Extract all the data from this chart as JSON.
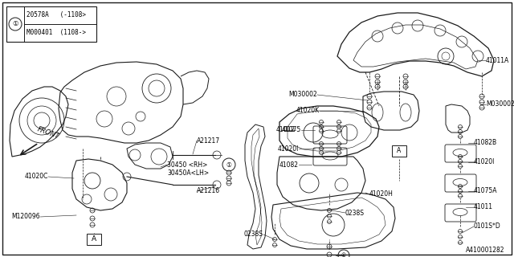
{
  "bg_color": "#ffffff",
  "border_color": "#000000",
  "diagram_id": "A410001282",
  "part_note_1a": "20578A",
  "part_note_1b": "(-1108>",
  "part_note_2a": "M000401",
  "part_note_2b": "(1108->",
  "lc": "#1a1a1a",
  "tc": "#000000",
  "fs": 5.5,
  "fig_w": 6.4,
  "fig_h": 3.2,
  "dpi": 100
}
